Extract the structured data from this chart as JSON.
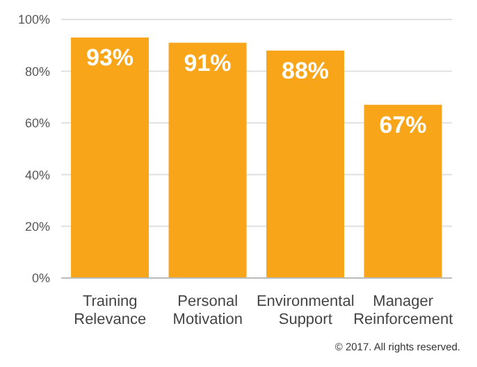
{
  "chart_data": {
    "type": "bar",
    "categories": [
      "Training Relevance",
      "Personal Motivation",
      "Environmental Support",
      "Manager Reinforcement"
    ],
    "values": [
      93,
      91,
      88,
      67
    ],
    "value_labels": [
      "93%",
      "91%",
      "88%",
      "67%"
    ],
    "color": "#f9a51a",
    "ylim": [
      0,
      100
    ],
    "yticks": [
      {
        "value": 0,
        "label": "0%"
      },
      {
        "value": 20,
        "label": "20%"
      },
      {
        "value": 40,
        "label": "40%"
      },
      {
        "value": 60,
        "label": "60%"
      },
      {
        "value": 80,
        "label": "80%"
      },
      {
        "value": 100,
        "label": "100%"
      }
    ],
    "grid": "y",
    "annotations": [
      "© 2017.  All rights reserved."
    ]
  }
}
